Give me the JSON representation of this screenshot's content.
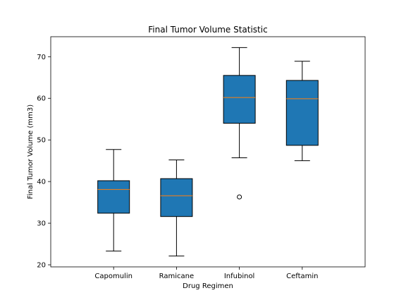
{
  "chart_data": {
    "type": "box",
    "title": "Final Tumor Volume Statistic",
    "xlabel": "Drug Regimen",
    "ylabel": "Final Tumor Volume (mm3)",
    "ylim": [
      19.5,
      74.8
    ],
    "yticks": [
      20,
      30,
      40,
      50,
      60,
      70
    ],
    "categories": [
      "Capomulin",
      "Ramicane",
      "Infubinol",
      "Ceftamin"
    ],
    "boxes": [
      {
        "whislo": 23.3,
        "q1": 32.4,
        "med": 38.1,
        "q3": 40.2,
        "whishi": 47.7,
        "fliers": []
      },
      {
        "whislo": 22.1,
        "q1": 31.6,
        "med": 36.6,
        "q3": 40.7,
        "whishi": 45.2,
        "fliers": []
      },
      {
        "whislo": 45.7,
        "q1": 54.0,
        "med": 60.2,
        "q3": 65.5,
        "whishi": 72.2,
        "fliers": [
          36.3
        ]
      },
      {
        "whislo": 45.0,
        "q1": 48.7,
        "med": 59.9,
        "q3": 64.3,
        "whishi": 68.9,
        "fliers": []
      }
    ],
    "box_color": "#1f77b4",
    "median_color": "#ff7f0e",
    "grid": false
  }
}
